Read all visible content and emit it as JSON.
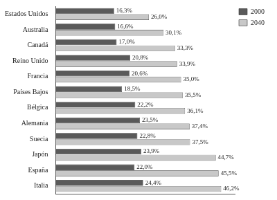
{
  "chart_data": {
    "type": "bar",
    "orientation": "horizontal",
    "categories": [
      "Estados Unidos",
      "Australia",
      "Canadá",
      "Reino Unido",
      "Francia",
      "Países Bajos",
      "Bélgica",
      "Alemania",
      "Suecia",
      "Japón",
      "España",
      "Italia"
    ],
    "series": [
      {
        "name": "2000",
        "color": "#5a5a5a",
        "values": [
          16.3,
          16.6,
          17.0,
          20.8,
          20.6,
          18.5,
          22.2,
          23.5,
          22.8,
          23.9,
          22.0,
          24.4
        ],
        "value_labels": [
          "16,3%",
          "16,6%",
          "17,0%",
          "20,8%",
          "20,6%",
          "18,5%",
          "22,2%",
          "23,5%",
          "22,8%",
          "23,9%",
          "22,0%",
          "24,4%"
        ]
      },
      {
        "name": "2040",
        "color": "#c8c8c8",
        "values": [
          26.0,
          30.1,
          33.3,
          33.9,
          35.0,
          35.5,
          36.1,
          37.4,
          37.5,
          44.7,
          45.5,
          46.2
        ],
        "value_labels": [
          "26,0%",
          "30,1%",
          "33,3%",
          "33,9%",
          "35,0%",
          "35,5%",
          "36,1%",
          "37,4%",
          "37,5%",
          "44,7%",
          "45,5%",
          "46,2%"
        ]
      }
    ],
    "xlim": [
      0,
      50
    ],
    "grid": false,
    "legend": "upper right",
    "data_labels": true,
    "tick_labels": "y"
  }
}
